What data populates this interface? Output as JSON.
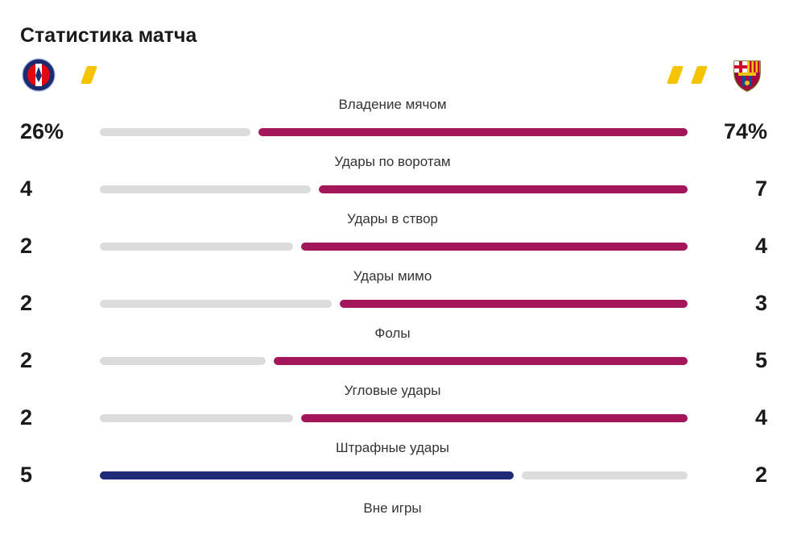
{
  "title": "Статистика матча",
  "teams": {
    "home": {
      "crest_icon": "psg-crest-icon",
      "yellow_cards": 1
    },
    "away": {
      "crest_icon": "barcelona-crest-icon",
      "yellow_cards": 2
    }
  },
  "colors": {
    "home_accent": "#1f2a78",
    "away_accent": "#a3175a",
    "neutral": "#dcdcdc",
    "card": "#f5c400"
  },
  "stats": [
    {
      "label": "Владение мячом",
      "home": "26%",
      "away": "74%",
      "home_share": 0.26
    },
    {
      "label": "Удары по воротам",
      "home": "4",
      "away": "7",
      "home_share": 0.3636
    },
    {
      "label": "Удары в створ",
      "home": "2",
      "away": "4",
      "home_share": 0.3333
    },
    {
      "label": "Удары мимо",
      "home": "2",
      "away": "3",
      "home_share": 0.4
    },
    {
      "label": "Фолы",
      "home": "2",
      "away": "5",
      "home_share": 0.2857
    },
    {
      "label": "Угловые удары",
      "home": "2",
      "away": "4",
      "home_share": 0.3333
    },
    {
      "label": "Штрафные удары",
      "home": "5",
      "away": "2",
      "home_share": 0.7143
    },
    {
      "label": "Вне игры"
    }
  ]
}
